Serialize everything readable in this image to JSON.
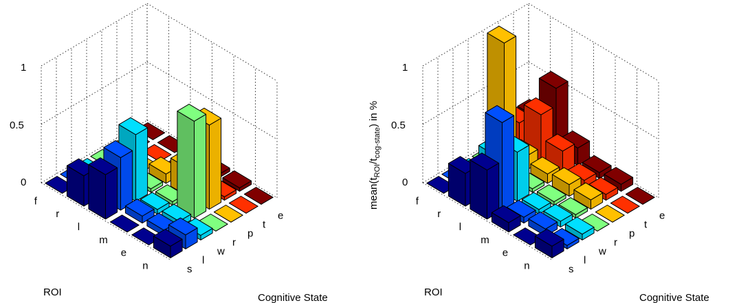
{
  "chart_data": [
    {
      "type": "bar3d",
      "ylabel": "",
      "row_axis_label": "ROI",
      "col_axis_label": "Cognitive State",
      "roi_labels": [
        "f",
        "r",
        "l",
        "m",
        "e",
        "n"
      ],
      "state_labels": [
        "s",
        "l",
        "w",
        "r",
        "p",
        "t",
        "e"
      ],
      "z_ticks": [
        "0",
        "0.5",
        "1"
      ],
      "zlim": [
        0,
        1
      ],
      "colors": [
        "#00008f",
        "#0050ff",
        "#00dfff",
        "#80ff80",
        "#ffc000",
        "#ff3000",
        "#800000"
      ],
      "values": [
        [
          0.0,
          0.0,
          0.0,
          0.0,
          0.0,
          0.0,
          0.0
        ],
        [
          0.26,
          0.0,
          0.0,
          0.0,
          0.0,
          0.0,
          0.0
        ],
        [
          0.38,
          0.45,
          0.57,
          0.03,
          0.08,
          0.0,
          0.0
        ],
        [
          0.0,
          0.06,
          0.04,
          0.03,
          0.24,
          0.03,
          0.03
        ],
        [
          0.0,
          0.05,
          0.05,
          0.83,
          0.72,
          0.03,
          0.03
        ],
        [
          0.1,
          0.12,
          0.04,
          0.0,
          0.0,
          0.0,
          0.0
        ]
      ]
    },
    {
      "type": "bar3d",
      "ylabel": "mean(t_ROI/t_cog-state) in %",
      "ylabel_main": "mean(t",
      "ylabel_sub1": "ROI",
      "ylabel_mid": "/t",
      "ylabel_sub2": "cog-state",
      "ylabel_end": ") in %",
      "row_axis_label": "ROI",
      "col_axis_label": "Cognitive State",
      "roi_labels": [
        "f",
        "r",
        "l",
        "m",
        "e",
        "n"
      ],
      "state_labels": [
        "s",
        "l",
        "w",
        "r",
        "p",
        "t",
        "e"
      ],
      "z_ticks": [
        "0",
        "0.5",
        "1"
      ],
      "zlim": [
        0,
        1
      ],
      "colors": [
        "#00008f",
        "#0050ff",
        "#00dfff",
        "#80ff80",
        "#ffc000",
        "#ff3000",
        "#800000"
      ],
      "values": [
        [
          0.0,
          0.0,
          0.0,
          0.0,
          0.98,
          0.22,
          0.2
        ],
        [
          0.28,
          0.2,
          0.28,
          0.05,
          0.12,
          0.4,
          0.55
        ],
        [
          0.42,
          0.75,
          0.42,
          0.03,
          0.08,
          0.2,
          0.15
        ],
        [
          0.08,
          0.05,
          0.04,
          0.03,
          0.1,
          0.06,
          0.05
        ],
        [
          0.0,
          0.06,
          0.05,
          0.03,
          0.08,
          0.05,
          0.06
        ],
        [
          0.1,
          0.03,
          0.05,
          0.0,
          0.0,
          0.0,
          0.0
        ]
      ]
    }
  ]
}
